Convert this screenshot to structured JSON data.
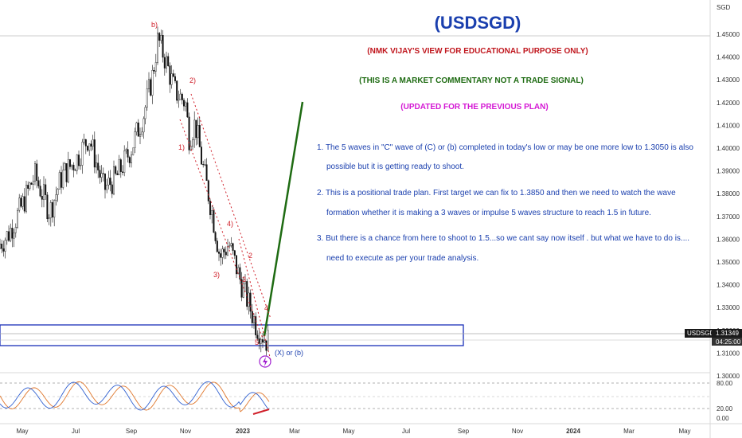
{
  "chart_data": {
    "type": "candlestick",
    "title": "(USDSGD)",
    "currency_label": "SGD",
    "symbol": "USDSGD",
    "last_price": "1.31349",
    "countdown": "04:25:00",
    "ylim": [
      1.295,
      1.455
    ],
    "yticks": [
      "1.45000",
      "1.44000",
      "1.43000",
      "1.42000",
      "1.41000",
      "1.40000",
      "1.39000",
      "1.38000",
      "1.37000",
      "1.36000",
      "1.35000",
      "1.34000",
      "1.33000",
      "1.32000",
      "1.31000",
      "1.30000"
    ],
    "xticks": [
      "May",
      "Jul",
      "Sep",
      "Nov",
      "2023",
      "Mar",
      "May",
      "Jul",
      "Sep",
      "Nov",
      "2024",
      "Mar",
      "May"
    ],
    "notes": [
      {
        "text": "(NMK VIJAY'S VIEW FOR EDUCATIONAL PURPOSE ONLY)",
        "color": "#c0161d"
      },
      {
        "text": "(THIS IS A MARKET COMMENTARY NOT A TRADE SIGNAL)",
        "color": "#1e6b12"
      },
      {
        "text": "(UPDATED FOR THE PREVIOUS PLAN)",
        "color": "#d418d4"
      }
    ],
    "commentary": [
      "1. The 5 waves in \"C\" wave of (C) or (b) completed in today's low or may be one more low to 1.3050 is also",
      "possible but it is getting ready to shoot.",
      "2. This is a positional trade plan. First target we can fix to 1.3850 and then we need to watch the wave",
      "formation whether it is making a 3 waves or impulse 5 waves structure to reach 1.5 in future.",
      "3. But there is a chance from here to shoot to 1.5...so we cant say now itself . but what we have to do is....",
      "need to execute as per your trade analysis."
    ],
    "wave_labels": [
      "b)",
      "2)",
      "1)",
      "3)",
      "4)",
      "2",
      "3",
      "4",
      "5",
      "(X) or (b)"
    ],
    "rsi_levels": [
      "80.00",
      "20.00",
      "0.00"
    ],
    "price_series": [
      [
        "2022-04-01",
        1.356
      ],
      [
        "2022-04-15",
        1.362
      ],
      [
        "2022-05-01",
        1.375
      ],
      [
        "2022-05-15",
        1.388
      ],
      [
        "2022-06-01",
        1.372
      ],
      [
        "2022-06-15",
        1.388
      ],
      [
        "2022-07-01",
        1.395
      ],
      [
        "2022-07-15",
        1.405
      ],
      [
        "2022-08-01",
        1.382
      ],
      [
        "2022-08-15",
        1.387
      ],
      [
        "2022-09-01",
        1.4
      ],
      [
        "2022-09-15",
        1.415
      ],
      [
        "2022-09-25",
        1.432
      ],
      [
        "2022-10-01",
        1.448
      ],
      [
        "2022-10-10",
        1.438
      ],
      [
        "2022-10-20",
        1.425
      ],
      [
        "2022-11-01",
        1.42
      ],
      [
        "2022-11-05",
        1.405
      ],
      [
        "2022-11-12",
        1.411
      ],
      [
        "2022-11-20",
        1.393
      ],
      [
        "2022-12-01",
        1.372
      ],
      [
        "2022-12-10",
        1.352
      ],
      [
        "2022-12-20",
        1.358
      ],
      [
        "2023-01-01",
        1.343
      ],
      [
        "2023-01-10",
        1.333
      ],
      [
        "2023-01-20",
        1.322
      ],
      [
        "2023-02-01",
        1.315
      ],
      [
        "2023-02-05",
        1.317
      ]
    ]
  }
}
